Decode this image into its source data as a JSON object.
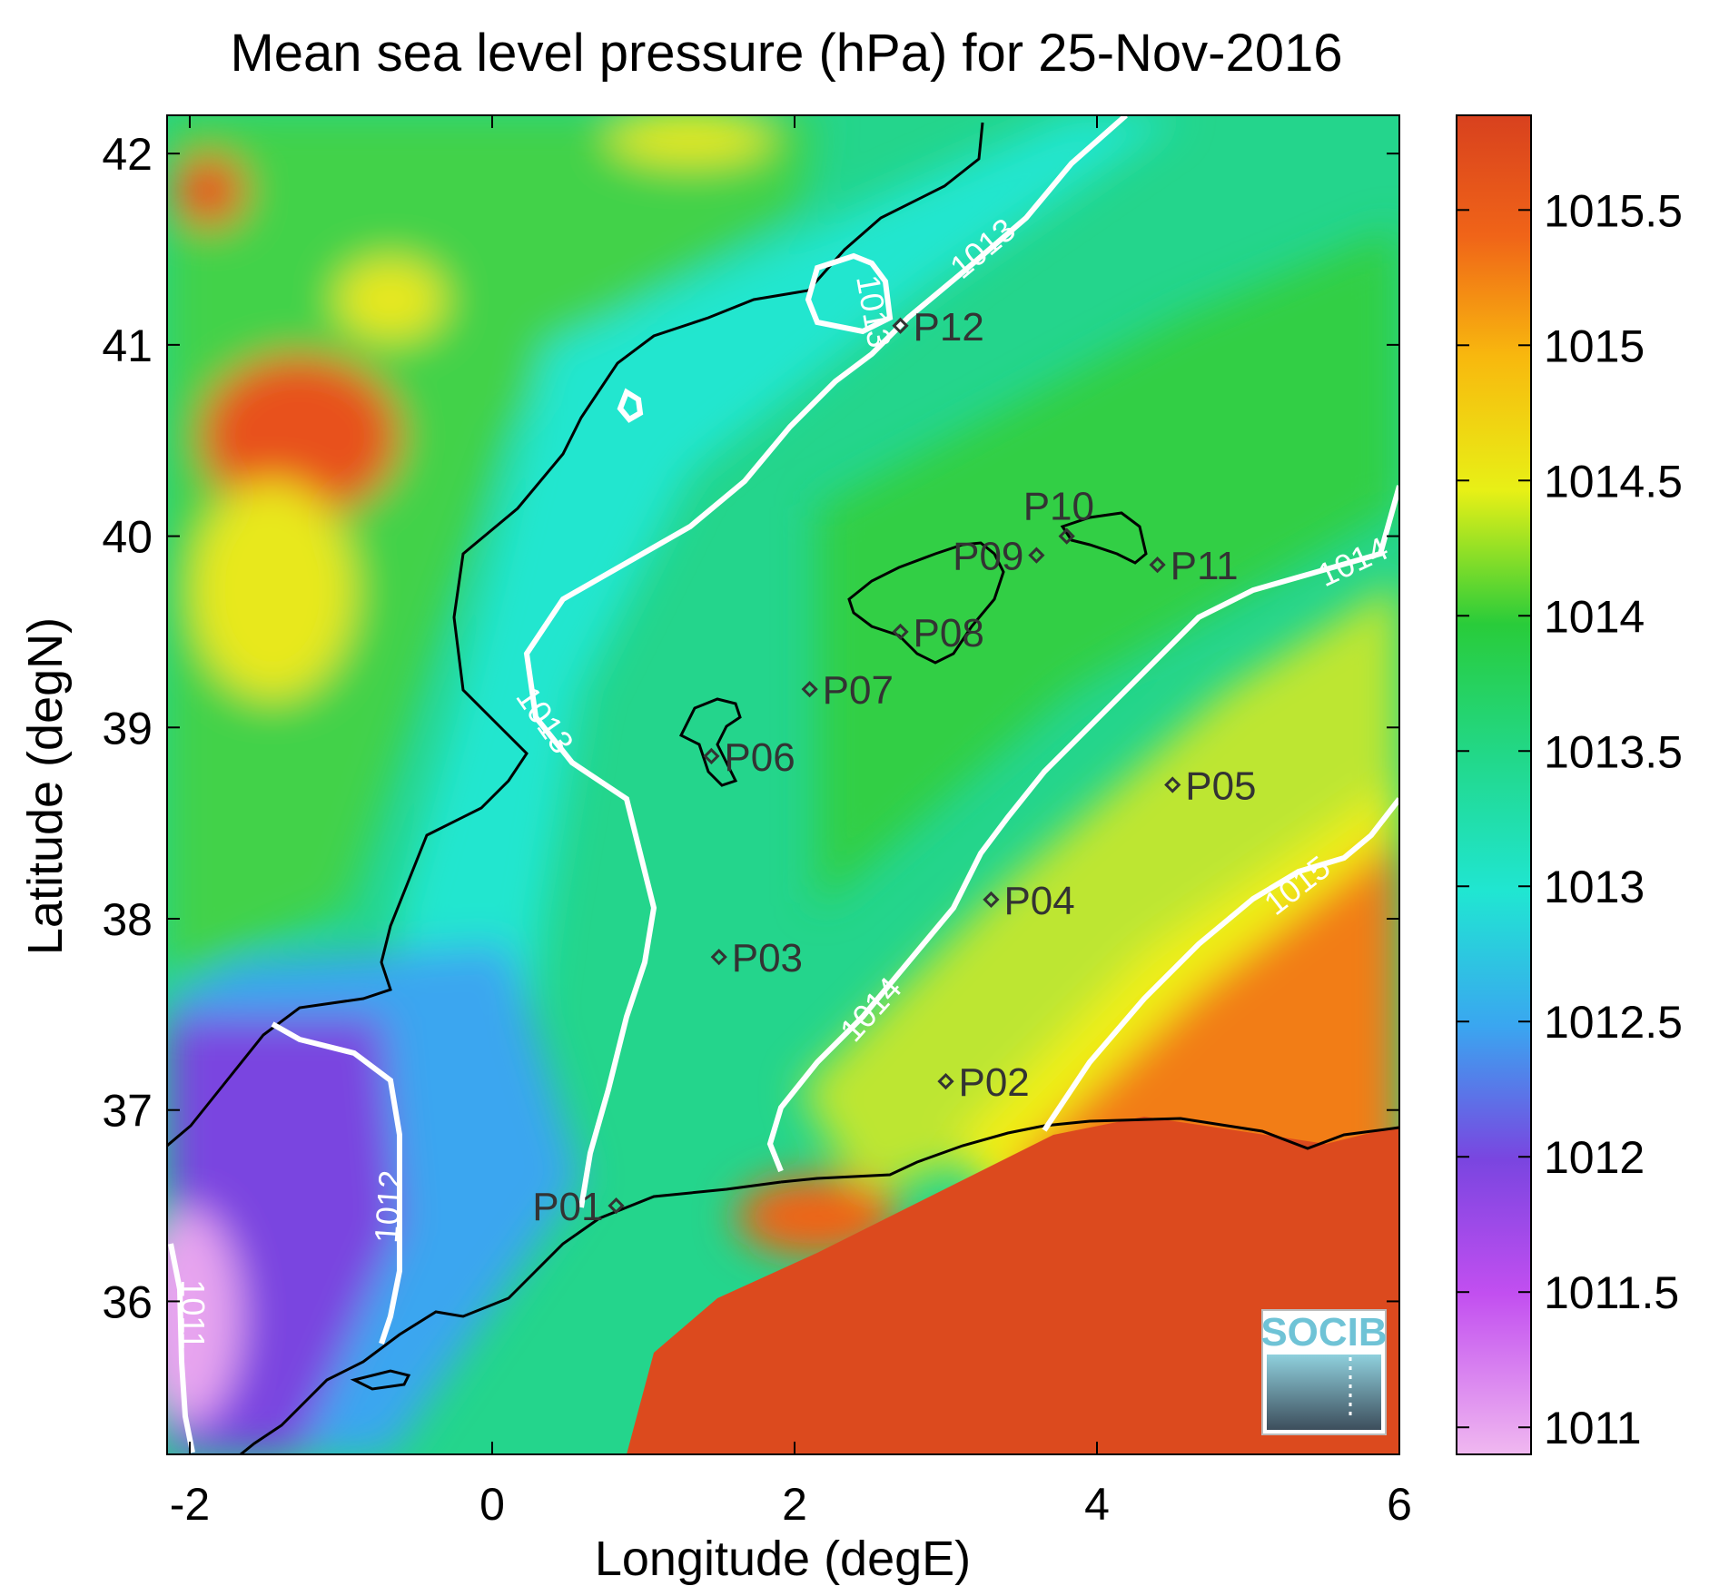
{
  "chart_data": {
    "type": "heatmap",
    "title": "Mean sea level pressure (hPa) for 25-Nov-2016",
    "xlabel": "Longitude (degE)",
    "ylabel": "Latitude (degN)",
    "xlim": [
      -2.15,
      6.0
    ],
    "ylim": [
      35.2,
      42.2
    ],
    "x_ticks": [
      "-2",
      "0",
      "2",
      "4",
      "6"
    ],
    "y_ticks": [
      "42",
      "41",
      "40",
      "39",
      "38",
      "37",
      "36"
    ],
    "colorbar": {
      "range": [
        1010.9,
        1015.85
      ],
      "ticks": [
        "1015.5",
        "1015",
        "1014.5",
        "1014",
        "1013.5",
        "1013",
        "1012.5",
        "1012",
        "1011.5",
        "1011"
      ],
      "colors": {
        "1011": "#f0b8f0",
        "1011.5": "#c24ff0",
        "1012": "#7a45e0",
        "1012.5": "#3aa6f0",
        "1013": "#20e6d2",
        "1013.5": "#22d88a",
        "1014": "#29cc3a",
        "1014.5": "#e8f016",
        "1015": "#f8b80e",
        "1015.5": "#f06418",
        "1015.85": "#d8411e"
      }
    },
    "contours": [
      {
        "level": 1011,
        "label": "1011"
      },
      {
        "level": 1012,
        "label": "1012"
      },
      {
        "level": 1013,
        "label": "1013"
      },
      {
        "level": 1014,
        "label": "1014"
      },
      {
        "level": 1015,
        "label": "1015"
      }
    ],
    "stations": [
      {
        "name": "P01",
        "lon": 0.82,
        "lat": 36.5
      },
      {
        "name": "P02",
        "lon": 3.0,
        "lat": 37.15
      },
      {
        "name": "P03",
        "lon": 1.5,
        "lat": 37.8
      },
      {
        "name": "P04",
        "lon": 3.3,
        "lat": 38.1
      },
      {
        "name": "P05",
        "lon": 4.5,
        "lat": 38.7
      },
      {
        "name": "P06",
        "lon": 1.45,
        "lat": 38.85
      },
      {
        "name": "P07",
        "lon": 2.1,
        "lat": 39.2
      },
      {
        "name": "P08",
        "lon": 2.7,
        "lat": 39.5
      },
      {
        "name": "P09",
        "lon": 3.6,
        "lat": 39.9
      },
      {
        "name": "P10",
        "lon": 3.8,
        "lat": 40.0
      },
      {
        "name": "P11",
        "lon": 4.4,
        "lat": 39.85
      },
      {
        "name": "P12",
        "lon": 2.7,
        "lat": 41.1
      }
    ],
    "logo": "SOCIB"
  }
}
